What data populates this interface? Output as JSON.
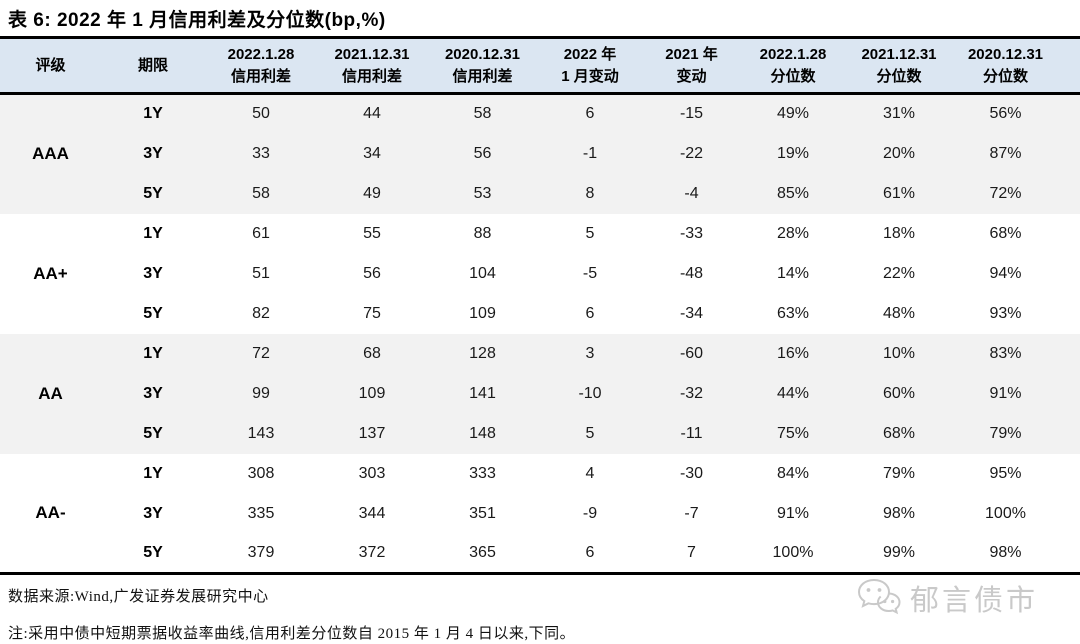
{
  "title": "表 6: 2022 年 1 月信用利差及分位数(bp,%)",
  "table": {
    "headers": [
      {
        "l1": "评级"
      },
      {
        "l1": "期限"
      },
      {
        "l1": "2022.1.28",
        "l2": "信用利差"
      },
      {
        "l1": "2021.12.31",
        "l2": "信用利差"
      },
      {
        "l1": "2020.12.31",
        "l2": "信用利差"
      },
      {
        "l1": "2022 年",
        "l2": "1 月变动"
      },
      {
        "l1": "2021 年",
        "l2": "变动"
      },
      {
        "l1": "2022.1.28",
        "l2": "分位数"
      },
      {
        "l1": "2021.12.31",
        "l2": "分位数"
      },
      {
        "l1": "2020.12.31",
        "l2": "分位数"
      }
    ],
    "groups": [
      {
        "rating": "AAA",
        "rows": [
          {
            "term": "1Y",
            "values": [
              "50",
              "44",
              "58",
              "6",
              "-15",
              "49%",
              "31%",
              "56%"
            ]
          },
          {
            "term": "3Y",
            "values": [
              "33",
              "34",
              "56",
              "-1",
              "-22",
              "19%",
              "20%",
              "87%"
            ]
          },
          {
            "term": "5Y",
            "values": [
              "58",
              "49",
              "53",
              "8",
              "-4",
              "85%",
              "61%",
              "72%"
            ]
          }
        ]
      },
      {
        "rating": "AA+",
        "rows": [
          {
            "term": "1Y",
            "values": [
              "61",
              "55",
              "88",
              "5",
              "-33",
              "28%",
              "18%",
              "68%"
            ]
          },
          {
            "term": "3Y",
            "values": [
              "51",
              "56",
              "104",
              "-5",
              "-48",
              "14%",
              "22%",
              "94%"
            ]
          },
          {
            "term": "5Y",
            "values": [
              "82",
              "75",
              "109",
              "6",
              "-34",
              "63%",
              "48%",
              "93%"
            ]
          }
        ]
      },
      {
        "rating": "AA",
        "rows": [
          {
            "term": "1Y",
            "values": [
              "72",
              "68",
              "128",
              "3",
              "-60",
              "16%",
              "10%",
              "83%"
            ]
          },
          {
            "term": "3Y",
            "values": [
              "99",
              "109",
              "141",
              "-10",
              "-32",
              "44%",
              "60%",
              "91%"
            ]
          },
          {
            "term": "5Y",
            "values": [
              "143",
              "137",
              "148",
              "5",
              "-11",
              "75%",
              "68%",
              "79%"
            ]
          }
        ]
      },
      {
        "rating": "AA-",
        "rows": [
          {
            "term": "1Y",
            "values": [
              "308",
              "303",
              "333",
              "4",
              "-30",
              "84%",
              "79%",
              "95%"
            ]
          },
          {
            "term": "3Y",
            "values": [
              "335",
              "344",
              "351",
              "-9",
              "-7",
              "91%",
              "98%",
              "100%"
            ]
          },
          {
            "term": "5Y",
            "values": [
              "379",
              "372",
              "365",
              "6",
              "7",
              "100%",
              "99%",
              "98%"
            ]
          }
        ]
      }
    ]
  },
  "footer": {
    "source": "数据来源:Wind,广发证券发展研究中心",
    "note": "注:采用中债中短期票据收益率曲线,信用利差分位数自 2015 年 1 月 4 日以来,下同。"
  },
  "watermark": {
    "label": "郁言债市",
    "icon": "wechat-icon"
  },
  "colors": {
    "header_bg": "#dbe6f2",
    "band_gray": "#f2f2f2",
    "border": "#000000",
    "watermark_gray": "#c9c9c9"
  }
}
